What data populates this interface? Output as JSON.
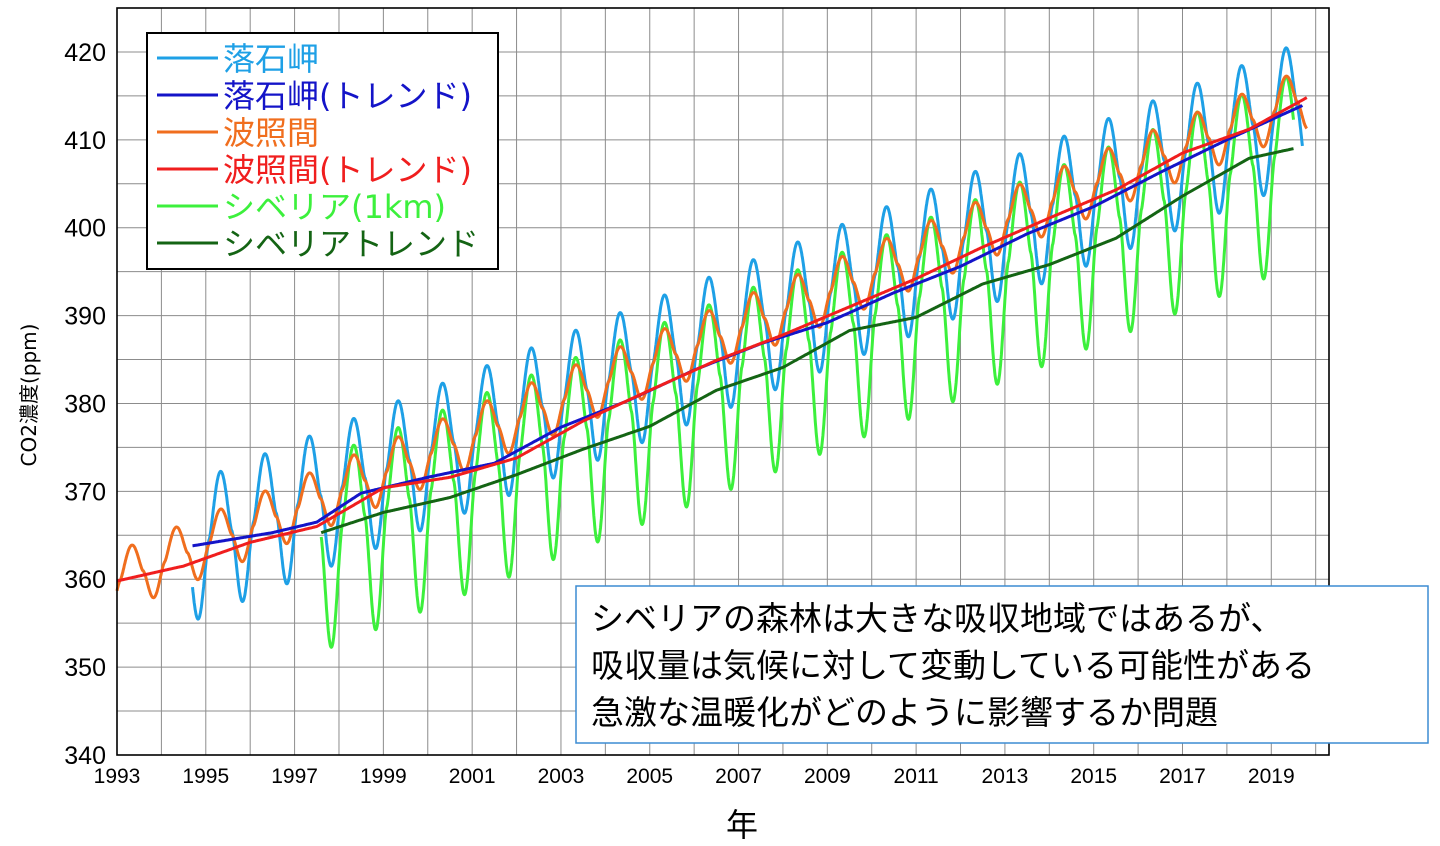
{
  "chart_data": {
    "type": "line",
    "xlabel": "年",
    "ylabel": "CO2濃度(ppm)",
    "xlim": [
      1993.0,
      2020.3
    ],
    "ylim": [
      340,
      425
    ],
    "grid": true,
    "x_ticks": [
      1993,
      1995,
      1997,
      1999,
      2001,
      2003,
      2005,
      2007,
      2009,
      2011,
      2013,
      2015,
      2017,
      2019
    ],
    "y_ticks": [
      340,
      350,
      360,
      370,
      380,
      390,
      400,
      410,
      420
    ],
    "legend_position": "top-left",
    "series": [
      {
        "name": "落石岬",
        "color": "#1ea0e6",
        "kind": "seasonal",
        "x_range": [
          1994.7,
          2019.7
        ],
        "trend_a": [
          1994.7,
          363.8
        ],
        "trend_b": [
          2019.7,
          414.0
        ],
        "amp_max": 7.2,
        "amp_min": 8.6
      },
      {
        "name": "落石岬(トレンド)",
        "color": "#1414c8",
        "kind": "trend",
        "x": [
          1994.7,
          1996.5,
          1997.5,
          1998.5,
          2000.0,
          2001.5,
          2003.0,
          2004.5,
          2006.0,
          2007.5,
          2009.0,
          2010.5,
          2012.0,
          2013.5,
          2015.0,
          2016.5,
          2018.0,
          2019.7
        ],
        "y": [
          363.8,
          365.3,
          366.5,
          369.8,
          371.6,
          373.2,
          377.3,
          380.3,
          383.8,
          386.8,
          389.2,
          392.6,
          395.6,
          399.3,
          402.4,
          406.3,
          410.0,
          413.9
        ]
      },
      {
        "name": "波照間",
        "color": "#f06e1e",
        "kind": "seasonal",
        "x_range": [
          1993.0,
          2019.8
        ],
        "trend_a": [
          1993.0,
          359.8
        ],
        "trend_b": [
          2019.8,
          414.8
        ],
        "amp_max": 3.4,
        "amp_min": 3.6
      },
      {
        "name": "波照間(トレンド)",
        "color": "#f01e1e",
        "kind": "trend",
        "x": [
          1993.0,
          1994.5,
          1996.0,
          1997.5,
          1999.0,
          2000.5,
          2002.0,
          2003.5,
          2005.0,
          2006.5,
          2008.0,
          2009.5,
          2011.0,
          2012.5,
          2014.0,
          2015.5,
          2017.0,
          2018.5,
          2019.8
        ],
        "y": [
          359.8,
          361.5,
          364.2,
          366.0,
          370.4,
          371.6,
          373.8,
          378.0,
          381.5,
          384.9,
          387.8,
          391.0,
          394.2,
          397.8,
          401.1,
          404.3,
          408.5,
          411.2,
          414.8
        ]
      },
      {
        "name": "シベリア(1km)",
        "color": "#3cf03c",
        "kind": "seasonal",
        "x_range": [
          1997.6,
          2019.5
        ],
        "trend_a": [
          1997.6,
          365.3
        ],
        "trend_b": [
          2019.5,
          409.0
        ],
        "amp_max": 8.5,
        "amp_min": 13.5
      },
      {
        "name": "シベリアトレンド",
        "color": "#146414",
        "kind": "trend",
        "x": [
          1997.6,
          1999.0,
          2000.5,
          2002.0,
          2003.5,
          2005.0,
          2006.5,
          2008.0,
          2009.5,
          2011.0,
          2012.5,
          2014.0,
          2015.5,
          2017.0,
          2018.5,
          2019.5
        ],
        "y": [
          365.3,
          367.6,
          369.3,
          371.9,
          374.8,
          377.4,
          381.5,
          384.1,
          388.3,
          389.8,
          393.6,
          395.8,
          398.8,
          403.6,
          407.9,
          409.0
        ]
      }
    ]
  },
  "annotation": {
    "lines": [
      "シベリアの森林は大きな吸収地域ではあるが、",
      "吸収量は気候に対して変動している可能性がある",
      "急激な温暖化がどのように影響するか問題"
    ]
  }
}
